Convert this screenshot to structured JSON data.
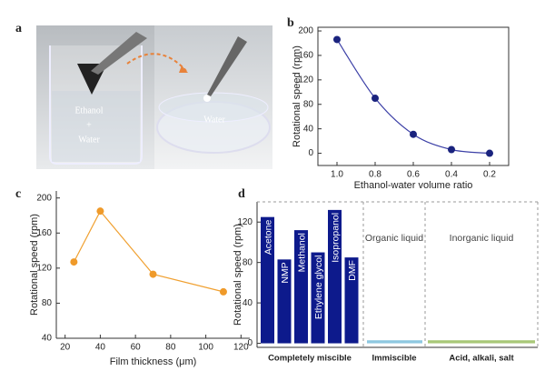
{
  "panels": [
    "a",
    "b",
    "c",
    "d"
  ],
  "photo": {
    "left_label": [
      "Ethanol",
      "+",
      "Water"
    ],
    "right_label": "Water"
  },
  "chart_data": [
    {
      "type": "line",
      "x": [
        1,
        0.8,
        0.6,
        0.4,
        0.2
      ],
      "values": [
        186,
        90,
        31,
        6,
        0
      ],
      "color": "#3b3fa6",
      "marker_color": "#1a237e",
      "xlabel": "Ethanol-water volume ratio",
      "ylabel": "Rotational speed (rpm)",
      "xlim": [
        1.1,
        0.1
      ],
      "xticks": [
        {
          "value": 1,
          "label": "1.0"
        },
        0.8,
        0.6,
        0.4,
        0.2
      ],
      "ylim": [
        -20,
        206
      ],
      "yticks": [
        0,
        40,
        80,
        120,
        160,
        200
      ],
      "frame": true
    },
    {
      "type": "line",
      "x": [
        25,
        40,
        70,
        110
      ],
      "values": [
        127,
        185,
        113,
        93
      ],
      "color": "#f0a030",
      "marker_color": "#ef9a2a",
      "xlabel": "Film thickness (μm)",
      "ylabel": "Rotational speed (rpm)",
      "xlim": [
        15,
        125
      ],
      "xticks": [
        20,
        40,
        60,
        80,
        100,
        120
      ],
      "ylim": [
        40,
        208
      ],
      "yticks": [
        40,
        80,
        120,
        160,
        200
      ],
      "frame": false
    },
    {
      "type": "bar",
      "categories": [
        "Acetone",
        "NMP",
        "Methanol",
        "Ethylene glycol",
        "Isopropanol",
        "DMF",
        null,
        null
      ],
      "values": [
        125,
        83,
        112,
        90,
        132,
        85,
        3,
        3
      ],
      "colors": [
        "#0d1a8c",
        "#0d1a8c",
        "#0d1a8c",
        "#0d1a8c",
        "#0d1a8c",
        "#0d1a8c",
        "#8ec8e0",
        "#a8c878"
      ],
      "group_labels": [
        "Completely miscible",
        "Immiscible",
        "Acid, alkali, salt"
      ],
      "region_labels": [
        "Organic liquid",
        "Inorganic liquid"
      ],
      "ylabel": "Rotational speed (rpm)",
      "ylim": [
        -4,
        140
      ],
      "yticks": [
        0,
        40,
        80,
        120
      ],
      "frame": false
    }
  ]
}
